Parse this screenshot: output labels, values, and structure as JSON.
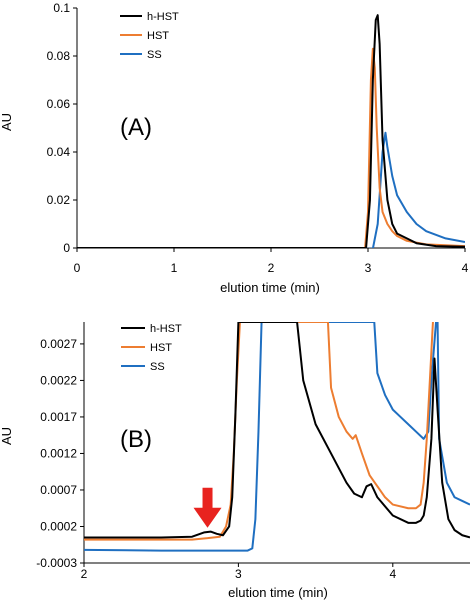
{
  "colors": {
    "h_HST": "#000000",
    "HST": "#ED7D31",
    "SS": "#1F6FC1",
    "arrow": "#E8231F",
    "axis": "#000000"
  },
  "chart_data": [
    {
      "panel_label": "(A)",
      "type": "line",
      "xlabel": "elution time (min)",
      "ylabel": "AU",
      "xlim": [
        0,
        4
      ],
      "ylim": [
        0,
        0.1
      ],
      "x_ticks": [
        0,
        1,
        2,
        3,
        4
      ],
      "y_ticks": [
        0,
        0.02,
        0.04,
        0.06,
        0.08,
        0.1
      ],
      "y_tick_labels": [
        "0",
        "0.02",
        "0.04",
        "0.06",
        "0.08",
        "0.1"
      ],
      "grid": false,
      "legend": "top-left",
      "series": [
        {
          "name": "h-HST",
          "color": "#000000",
          "x": [
            0,
            2.9,
            2.98,
            3.02,
            3.05,
            3.08,
            3.1,
            3.12,
            3.15,
            3.2,
            3.25,
            3.3,
            3.4,
            3.5,
            3.7,
            4.0
          ],
          "y": [
            0,
            0,
            0,
            0.02,
            0.07,
            0.095,
            0.097,
            0.085,
            0.045,
            0.02,
            0.01,
            0.006,
            0.004,
            0.002,
            0.0008,
            0.0005
          ]
        },
        {
          "name": "HST",
          "color": "#ED7D31",
          "x": [
            0,
            2.9,
            2.97,
            3.0,
            3.03,
            3.05,
            3.07,
            3.09,
            3.12,
            3.15,
            3.2,
            3.25,
            3.3,
            3.4,
            3.6,
            4.0
          ],
          "y": [
            0,
            0,
            0,
            0.015,
            0.07,
            0.083,
            0.075,
            0.05,
            0.025,
            0.015,
            0.01,
            0.007,
            0.005,
            0.003,
            0.0015,
            0.0008
          ]
        },
        {
          "name": "SS",
          "color": "#1F6FC1",
          "x": [
            0,
            3.05,
            3.1,
            3.15,
            3.18,
            3.2,
            3.25,
            3.3,
            3.4,
            3.5,
            3.6,
            3.8,
            4.0
          ],
          "y": [
            -0.0003,
            -0.0003,
            0.01,
            0.04,
            0.048,
            0.042,
            0.03,
            0.022,
            0.015,
            0.01,
            0.007,
            0.004,
            0.0025
          ]
        }
      ]
    },
    {
      "panel_label": "(B)",
      "type": "line",
      "xlabel": "elution time (min)",
      "ylabel": "AU",
      "xlim": [
        2,
        4.5
      ],
      "ylim": [
        -0.0003,
        0.003
      ],
      "x_ticks": [
        2,
        3,
        4
      ],
      "y_ticks": [
        -0.0003,
        0.0002,
        0.0007,
        0.0012,
        0.0017,
        0.0022,
        0.0027
      ],
      "y_tick_labels": [
        "-0.0003",
        "0.0002",
        "0.0007",
        "0.0012",
        "0.0017",
        "0.0022",
        "0.0027"
      ],
      "grid": false,
      "legend": "top-center",
      "annotation": {
        "type": "arrow",
        "x": 2.8,
        "y": 0.0001
      },
      "series": [
        {
          "name": "h-HST",
          "color": "#000000",
          "x": [
            2.0,
            2.5,
            2.7,
            2.78,
            2.82,
            2.86,
            2.9,
            2.94,
            2.96,
            2.98,
            3.0,
            3.02,
            3.38,
            3.42,
            3.5,
            3.6,
            3.65,
            3.7,
            3.75,
            3.8,
            3.83,
            3.86,
            3.9,
            4.0,
            4.1,
            4.15,
            4.18,
            4.2,
            4.22,
            4.25,
            4.27,
            4.29,
            4.32,
            4.36,
            4.4,
            4.45,
            4.5
          ],
          "y": [
            5e-05,
            5e-05,
            6e-05,
            0.00012,
            0.00013,
            0.0001,
            8e-05,
            0.0002,
            0.0006,
            0.0017,
            0.003,
            0.003,
            0.003,
            0.0022,
            0.0016,
            0.0012,
            0.001,
            0.0008,
            0.00065,
            0.0006,
            0.00075,
            0.00078,
            0.0006,
            0.00035,
            0.00025,
            0.00025,
            0.00028,
            0.00035,
            0.0006,
            0.0014,
            0.0025,
            0.0018,
            0.0008,
            0.0003,
            0.00015,
            8e-05,
            5e-05
          ]
        },
        {
          "name": "HST",
          "color": "#ED7D31",
          "x": [
            2.0,
            2.5,
            2.7,
            2.8,
            2.88,
            2.92,
            2.95,
            2.97,
            2.99,
            3.01,
            3.58,
            3.6,
            3.65,
            3.7,
            3.74,
            3.76,
            3.8,
            3.85,
            3.95,
            4.0,
            4.1,
            4.15,
            4.18,
            4.2,
            4.22,
            4.24,
            4.26
          ],
          "y": [
            2e-05,
            2e-05,
            2e-05,
            4e-05,
            6e-05,
            0.0002,
            0.0005,
            0.0012,
            0.0022,
            0.003,
            0.003,
            0.0021,
            0.0017,
            0.0015,
            0.0014,
            0.00145,
            0.0012,
            0.0009,
            0.0006,
            0.0005,
            0.00045,
            0.00045,
            0.0005,
            0.0008,
            0.0014,
            0.0022,
            0.003
          ]
        },
        {
          "name": "SS",
          "color": "#1F6FC1",
          "x": [
            2.0,
            2.5,
            3.0,
            3.06,
            3.09,
            3.11,
            3.13,
            3.15,
            3.88,
            3.9,
            3.95,
            4.0,
            4.05,
            4.1,
            4.15,
            4.2,
            4.23,
            4.25,
            4.28,
            4.29,
            4.3,
            4.35,
            4.4,
            4.45,
            4.5
          ],
          "y": [
            -0.00012,
            -0.00013,
            -0.00013,
            -0.00013,
            -0.0001,
            0.0003,
            0.0015,
            0.003,
            0.003,
            0.0023,
            0.002,
            0.0018,
            0.0017,
            0.0016,
            0.0015,
            0.0014,
            0.0015,
            0.0022,
            0.003,
            0.003,
            0.0014,
            0.0008,
            0.0006,
            0.00055,
            0.0005
          ]
        }
      ]
    }
  ]
}
